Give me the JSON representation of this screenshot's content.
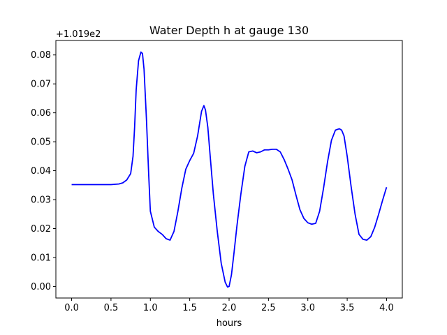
{
  "chart_data": {
    "type": "line",
    "title": "Water Depth h at gauge 130",
    "xlabel": "hours",
    "ylabel": "",
    "y_offset_label": "+1.019e2",
    "xlim": [
      -0.2,
      4.2
    ],
    "ylim": [
      -0.004,
      0.085
    ],
    "xticks": [
      0.0,
      0.5,
      1.0,
      1.5,
      2.0,
      2.5,
      3.0,
      3.5,
      4.0
    ],
    "xtick_labels": [
      "0.0",
      "0.5",
      "1.0",
      "1.5",
      "2.0",
      "2.5",
      "3.0",
      "3.5",
      "4.0"
    ],
    "yticks": [
      0.0,
      0.01,
      0.02,
      0.03,
      0.04,
      0.05,
      0.06,
      0.07,
      0.08
    ],
    "ytick_labels": [
      "0.00",
      "0.01",
      "0.02",
      "0.03",
      "0.04",
      "0.05",
      "0.06",
      "0.07",
      "0.08"
    ],
    "grid": false,
    "legend": "none",
    "series": [
      {
        "color": "#0000ff",
        "x": [
          0.0,
          0.2,
          0.4,
          0.5,
          0.6,
          0.65,
          0.7,
          0.75,
          0.78,
          0.8,
          0.82,
          0.85,
          0.88,
          0.9,
          0.92,
          0.95,
          0.98,
          1.0,
          1.05,
          1.1,
          1.15,
          1.2,
          1.25,
          1.3,
          1.35,
          1.4,
          1.45,
          1.5,
          1.55,
          1.6,
          1.65,
          1.68,
          1.7,
          1.73,
          1.76,
          1.8,
          1.85,
          1.9,
          1.95,
          1.98,
          2.0,
          2.03,
          2.06,
          2.1,
          2.15,
          2.2,
          2.25,
          2.3,
          2.35,
          2.4,
          2.45,
          2.5,
          2.55,
          2.6,
          2.65,
          2.7,
          2.75,
          2.8,
          2.85,
          2.9,
          2.95,
          3.0,
          3.05,
          3.1,
          3.15,
          3.2,
          3.25,
          3.3,
          3.35,
          3.4,
          3.43,
          3.46,
          3.5,
          3.55,
          3.6,
          3.65,
          3.7,
          3.75,
          3.8,
          3.85,
          3.9,
          3.95,
          4.0
        ],
        "y": [
          0.0352,
          0.0352,
          0.0352,
          0.0352,
          0.0354,
          0.0358,
          0.0368,
          0.039,
          0.045,
          0.055,
          0.068,
          0.078,
          0.081,
          0.0805,
          0.075,
          0.058,
          0.038,
          0.026,
          0.0205,
          0.019,
          0.018,
          0.0165,
          0.016,
          0.019,
          0.026,
          0.034,
          0.0405,
          0.0435,
          0.046,
          0.052,
          0.0605,
          0.0625,
          0.061,
          0.055,
          0.045,
          0.032,
          0.019,
          0.008,
          0.0015,
          -0.0002,
          0.0,
          0.004,
          0.011,
          0.021,
          0.032,
          0.0415,
          0.0465,
          0.0468,
          0.0462,
          0.0465,
          0.0472,
          0.0472,
          0.0474,
          0.0474,
          0.0465,
          0.0438,
          0.0405,
          0.0368,
          0.0315,
          0.0265,
          0.0235,
          0.022,
          0.0215,
          0.0218,
          0.026,
          0.034,
          0.043,
          0.0505,
          0.054,
          0.0545,
          0.054,
          0.052,
          0.045,
          0.0345,
          0.025,
          0.018,
          0.0163,
          0.016,
          0.0172,
          0.0205,
          0.025,
          0.0298,
          0.0343
        ]
      }
    ]
  }
}
